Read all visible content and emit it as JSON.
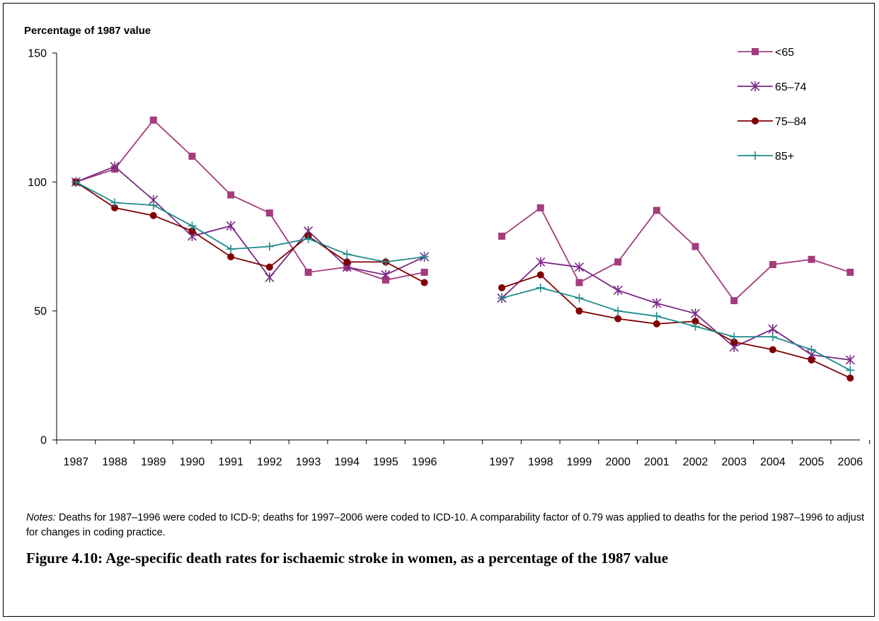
{
  "chart_data": {
    "type": "line",
    "ylabel": "Percentage of 1987 value",
    "ylim": [
      0,
      150
    ],
    "yticks": [
      0,
      50,
      100,
      150
    ],
    "categories": [
      "1987",
      "1988",
      "1989",
      "1990",
      "1991",
      "1992",
      "1993",
      "1994",
      "1995",
      "1996",
      "1997",
      "1998",
      "1999",
      "2000",
      "2001",
      "2002",
      "2003",
      "2004",
      "2005",
      "2006"
    ],
    "legend_position": "top-right",
    "grid": false,
    "series": [
      {
        "name": "<65",
        "marker": "square",
        "color": "#a33d7c",
        "values": [
          100,
          105,
          124,
          110,
          95,
          88,
          65,
          67,
          62,
          65,
          79,
          90,
          61,
          69,
          89,
          75,
          54,
          68,
          70,
          65
        ]
      },
      {
        "name": "65–74",
        "marker": "asterisk",
        "color": "#7a2a86",
        "values": [
          100,
          106,
          93,
          79,
          83,
          63,
          81,
          67,
          64,
          71,
          55,
          69,
          67,
          58,
          53,
          49,
          36,
          43,
          33,
          31
        ]
      },
      {
        "name": "75–84",
        "marker": "circle",
        "color": "#800000",
        "values": [
          100,
          90,
          87,
          81,
          71,
          67,
          79,
          69,
          69,
          61,
          59,
          64,
          50,
          47,
          45,
          46,
          38,
          35,
          31,
          24
        ]
      },
      {
        "name": "85+",
        "marker": "plus",
        "color": "#1f8a8a",
        "values": [
          100,
          92,
          91,
          83,
          74,
          75,
          78,
          72,
          69,
          71,
          55,
          59,
          55,
          50,
          48,
          44,
          40,
          40,
          35,
          27
        ]
      }
    ]
  },
  "notes": {
    "label": "Notes:",
    "text": " Deaths for 1987–1996 were coded to ICD-9; deaths for 1997–2006 were coded to ICD-10. A comparability factor of 0.79 was applied to deaths for the period 1987–1996 to adjust for changes in coding practice."
  },
  "caption": "Figure 4.10: Age-specific death rates for ischaemic stroke in women, as a percentage of the 1987 value"
}
